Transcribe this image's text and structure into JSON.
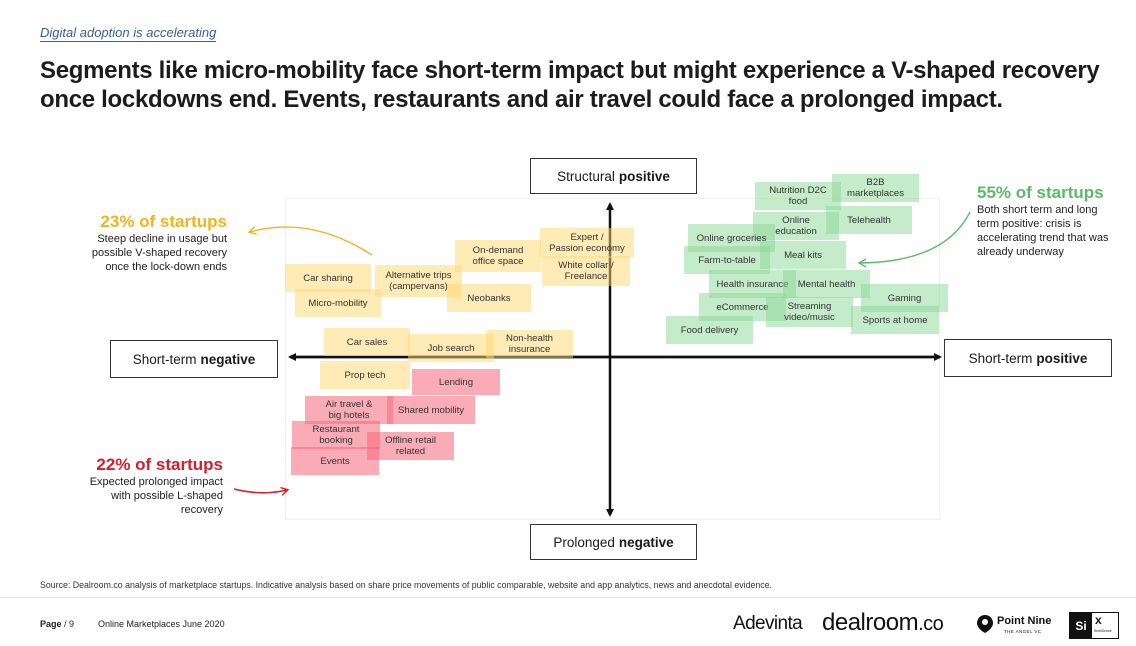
{
  "kicker": "Digital adoption is accelerating",
  "headline": "Segments like micro-mobility face short-term impact but might experience a V-shaped recovery once lockdowns end. Events, restaurants and air travel could face a prolonged impact.",
  "axes": {
    "top_prefix": "Structural",
    "top_bold": "positive",
    "bottom_prefix": "Prolonged",
    "bottom_bold": "negative",
    "left_prefix": "Short-term",
    "left_bold": "negative",
    "right_prefix": "Short-term",
    "right_bold": "positive"
  },
  "callouts": {
    "yellow": {
      "title": "23% of startups",
      "body": [
        "Steep decline in usage but",
        "possible V-shaped recovery",
        "once the lock-down ends"
      ],
      "color": "#f0b323"
    },
    "red": {
      "title": "22% of startups",
      "body": [
        "Expected prolonged impact",
        "with possible L-shaped",
        "recovery"
      ],
      "color": "#d0202e"
    },
    "green": {
      "title": "55% of startups",
      "body": [
        "Both short term and long",
        "term positive: crisis is",
        "accelerating trend that was",
        "already underway"
      ],
      "color": "#5cb96a"
    }
  },
  "segments": {
    "yellow": [
      [
        "Car sharing"
      ],
      [
        "Micro-mobility"
      ],
      [
        "Alternative trips",
        "(campervans)"
      ],
      [
        "On-demand",
        "office space"
      ],
      [
        "Neobanks"
      ],
      [
        "Expert /",
        "Passion economy"
      ],
      [
        "White collar /",
        "Freelance"
      ],
      [
        "Car sales"
      ],
      [
        "Job search"
      ],
      [
        "Non-health",
        "insurance"
      ],
      [
        "Prop tech"
      ]
    ],
    "red": [
      [
        "Lending"
      ],
      [
        "Air travel &",
        "big hotels"
      ],
      [
        "Shared mobility"
      ],
      [
        "Restaurant",
        "booking"
      ],
      [
        "Offline retail",
        "related"
      ],
      [
        "Events"
      ]
    ],
    "green": [
      [
        "Nutrition D2C",
        "food"
      ],
      [
        "B2B",
        "marketplaces"
      ],
      [
        "Online",
        "education"
      ],
      [
        "Telehealth"
      ],
      [
        "Online groceries"
      ],
      [
        "Farm-to-table"
      ],
      [
        "Meal kits"
      ],
      [
        "Health insurance"
      ],
      [
        "Mental health"
      ],
      [
        "Gaming"
      ],
      [
        "eCommerce"
      ],
      [
        "Streaming",
        "video/music"
      ],
      [
        "Sports at home"
      ],
      [
        "Food delivery"
      ]
    ]
  },
  "source": "Source: Dealroom.co analysis of marketplace startups. Indicative analysis based on share price movements of public comparable, website and app analytics, news and anecdotal evidence.",
  "footer": {
    "page_label": "Page",
    "page_number": "/ 9",
    "publication": "Online Marketplaces June 2020",
    "logos": {
      "adevinta": "Adevinta",
      "dealroom": "dealroom",
      "dealroom_suffix": ".co",
      "pointnine": "Point Nine",
      "pointnine_sub": "THE ANGEL VC",
      "six_a": "Si",
      "six_b": "x",
      "six_sub": "SixthSense"
    }
  }
}
